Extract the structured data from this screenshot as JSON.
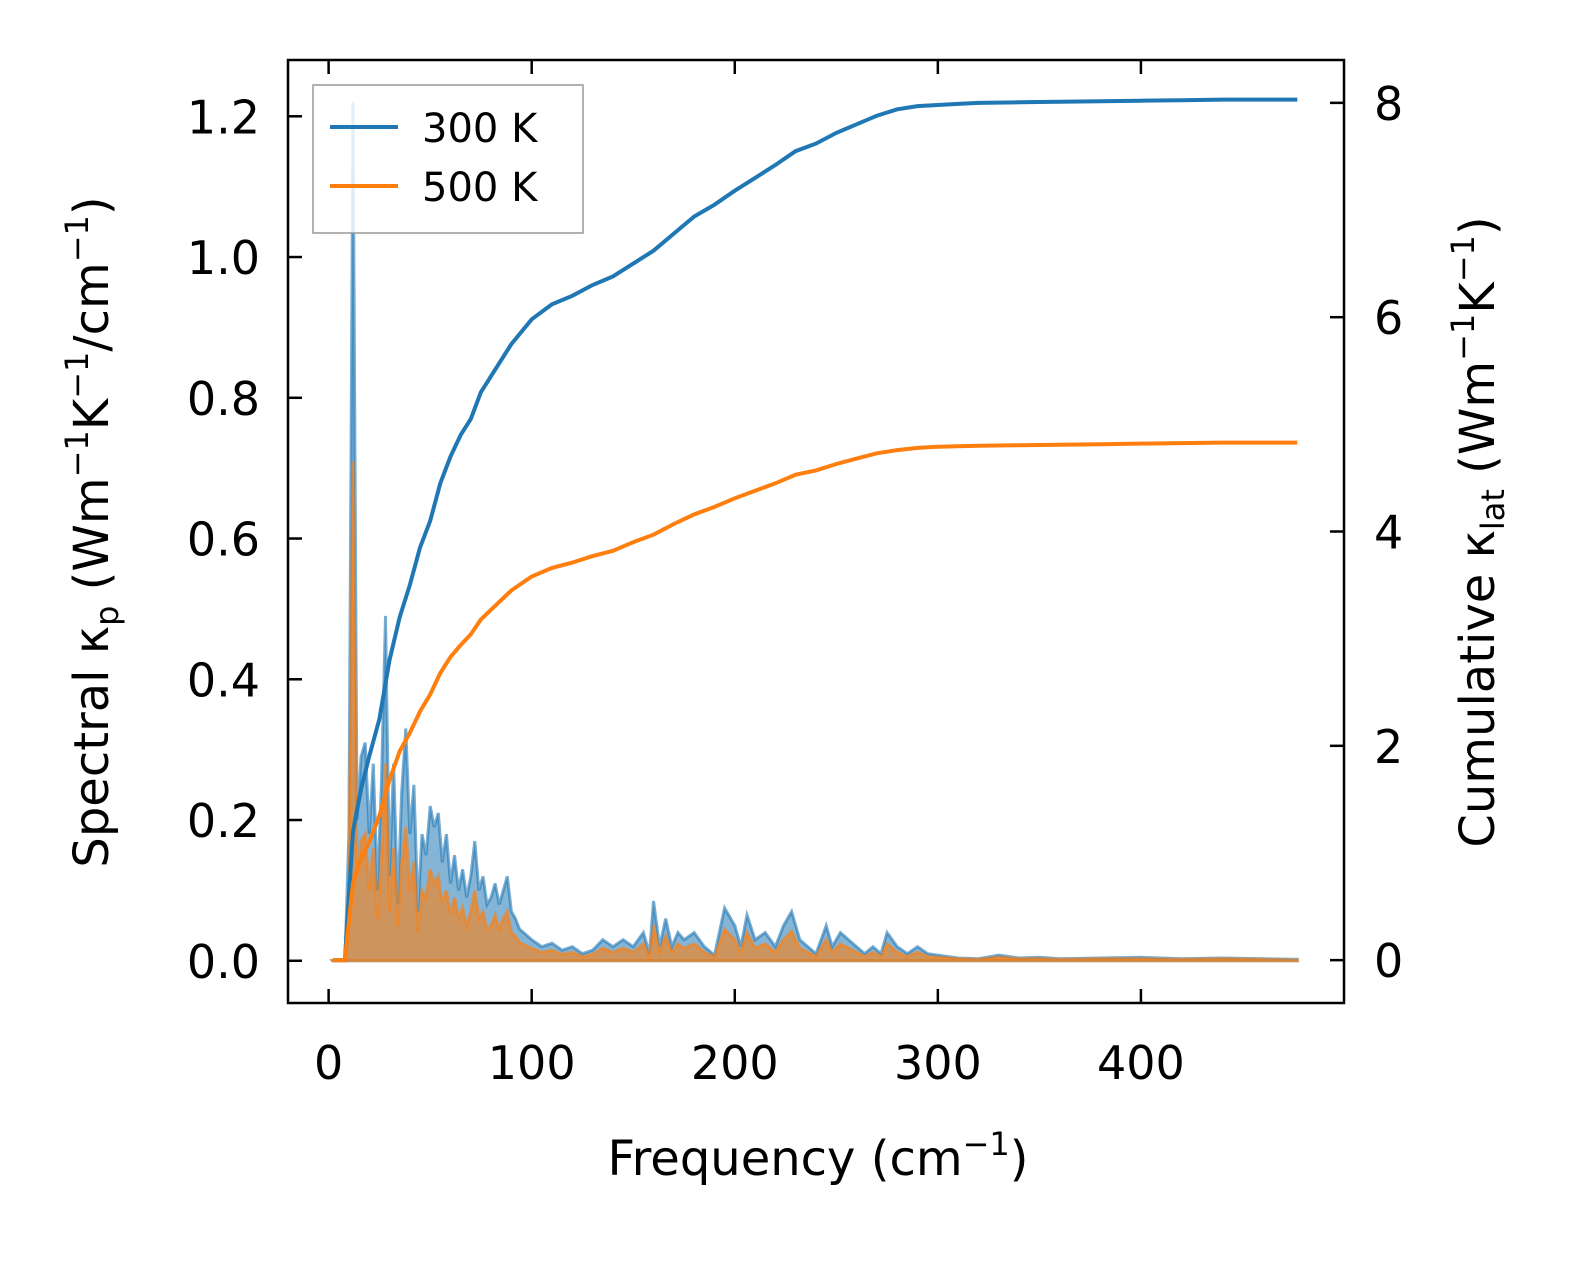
{
  "chart_data": {
    "type": "line",
    "title": "",
    "xlabel": {
      "main": "Frequency (cm",
      "sup": "−1",
      "tail": ")"
    },
    "ylabel_left": {
      "p1": "Spectral κ",
      "sub": "p",
      "p2": " (Wm",
      "sup1": "−1",
      "p3": "K",
      "sup2": "−1",
      "p4": "/cm",
      "sup3": "−1",
      "p5": ")"
    },
    "ylabel_right": {
      "p1": "Cumulative κ",
      "sub": "lat",
      "p2": " (Wm",
      "sup1": "−1",
      "p3": "K",
      "sup2": "−1",
      "p4": ")"
    },
    "xlim": [
      -20,
      500
    ],
    "ylim_left": [
      -0.06,
      1.28
    ],
    "ylim_right": [
      -0.4,
      8.4
    ],
    "x_ticks": [
      0,
      100,
      200,
      300,
      400
    ],
    "x_tick_labels": [
      "0",
      "100",
      "200",
      "300",
      "400"
    ],
    "y_left_ticks": [
      0.0,
      0.2,
      0.4,
      0.6,
      0.8,
      1.0,
      1.2
    ],
    "y_left_tick_labels": [
      "0.0",
      "0.2",
      "0.4",
      "0.6",
      "0.8",
      "1.0",
      "1.2"
    ],
    "y_right_ticks": [
      0,
      2,
      4,
      6,
      8
    ],
    "y_right_tick_labels": [
      "0",
      "2",
      "4",
      "6",
      "8"
    ],
    "legend_position": "top-left",
    "series": [
      {
        "name": "300 K",
        "color": "#1f77b4",
        "spectral": {
          "x": [
            2,
            8,
            10,
            12,
            14,
            16,
            18,
            20,
            22,
            24,
            26,
            28,
            30,
            32,
            34,
            36,
            38,
            40,
            42,
            44,
            46,
            48,
            50,
            52,
            54,
            56,
            58,
            60,
            62,
            64,
            66,
            68,
            70,
            72,
            74,
            76,
            78,
            80,
            82,
            84,
            86,
            88,
            90,
            92,
            94,
            96,
            98,
            100,
            105,
            110,
            115,
            120,
            125,
            130,
            135,
            140,
            145,
            150,
            155,
            158,
            160,
            163,
            166,
            169,
            172,
            175,
            180,
            185,
            190,
            195,
            200,
            203,
            206,
            210,
            215,
            220,
            224,
            228,
            232,
            236,
            240,
            245,
            248,
            252,
            256,
            260,
            264,
            268,
            272,
            275,
            280,
            285,
            290,
            295,
            300,
            310,
            320,
            330,
            340,
            350,
            360,
            380,
            400,
            420,
            440,
            460,
            477
          ],
          "y": [
            0,
            0,
            0.18,
            1.22,
            0.2,
            0.29,
            0.31,
            0.18,
            0.28,
            0.1,
            0.25,
            0.49,
            0.12,
            0.28,
            0.08,
            0.24,
            0.33,
            0.18,
            0.25,
            0.07,
            0.18,
            0.15,
            0.22,
            0.19,
            0.21,
            0.14,
            0.18,
            0.11,
            0.15,
            0.1,
            0.13,
            0.09,
            0.12,
            0.17,
            0.1,
            0.12,
            0.08,
            0.09,
            0.11,
            0.08,
            0.1,
            0.12,
            0.07,
            0.06,
            0.045,
            0.04,
            0.035,
            0.03,
            0.02,
            0.025,
            0.015,
            0.02,
            0.01,
            0.015,
            0.03,
            0.02,
            0.03,
            0.02,
            0.04,
            0.01,
            0.085,
            0.02,
            0.06,
            0.02,
            0.04,
            0.03,
            0.04,
            0.02,
            0.008,
            0.075,
            0.05,
            0.02,
            0.065,
            0.03,
            0.04,
            0.02,
            0.05,
            0.07,
            0.03,
            0.02,
            0.01,
            0.05,
            0.02,
            0.04,
            0.03,
            0.02,
            0.01,
            0.02,
            0.01,
            0.04,
            0.02,
            0.01,
            0.02,
            0.01,
            0.008,
            0.004,
            0.003,
            0.008,
            0.004,
            0.005,
            0.003,
            0.004,
            0.005,
            0.003,
            0.004,
            0.003,
            0.002
          ]
        },
        "cumulative": {
          "x": [
            2,
            8,
            12,
            16,
            20,
            25,
            30,
            35,
            40,
            45,
            50,
            55,
            60,
            65,
            70,
            75,
            80,
            90,
            100,
            110,
            120,
            130,
            140,
            150,
            160,
            170,
            180,
            190,
            200,
            210,
            220,
            230,
            240,
            250,
            260,
            270,
            280,
            290,
            300,
            310,
            320,
            340,
            360,
            380,
            400,
            420,
            440,
            460,
            477
          ],
          "y": [
            0,
            0,
            1.2,
            1.6,
            1.9,
            2.25,
            2.8,
            3.2,
            3.5,
            3.85,
            4.1,
            4.45,
            4.7,
            4.9,
            5.05,
            5.3,
            5.45,
            5.75,
            5.98,
            6.12,
            6.2,
            6.3,
            6.38,
            6.5,
            6.62,
            6.78,
            6.94,
            7.05,
            7.18,
            7.3,
            7.42,
            7.55,
            7.62,
            7.72,
            7.8,
            7.88,
            7.94,
            7.97,
            7.98,
            7.99,
            8.0,
            8.005,
            8.01,
            8.015,
            8.02,
            8.025,
            8.03,
            8.03,
            8.03
          ]
        }
      },
      {
        "name": "500 K",
        "color": "#ff7f0e",
        "spectral": {
          "x": [
            2,
            8,
            10,
            12,
            14,
            16,
            18,
            20,
            22,
            24,
            26,
            28,
            30,
            32,
            34,
            36,
            38,
            40,
            42,
            44,
            46,
            48,
            50,
            52,
            54,
            56,
            58,
            60,
            62,
            64,
            66,
            68,
            70,
            72,
            74,
            76,
            78,
            80,
            82,
            84,
            86,
            88,
            90,
            92,
            94,
            96,
            98,
            100,
            105,
            110,
            115,
            120,
            125,
            130,
            135,
            140,
            145,
            150,
            155,
            158,
            160,
            163,
            166,
            169,
            172,
            175,
            180,
            185,
            190,
            195,
            200,
            203,
            206,
            210,
            215,
            220,
            224,
            228,
            232,
            236,
            240,
            245,
            248,
            252,
            256,
            260,
            264,
            268,
            272,
            275,
            280,
            285,
            290,
            295,
            300,
            310,
            320,
            330,
            340,
            350,
            360,
            380,
            400,
            420,
            440,
            460,
            477
          ],
          "y": [
            0,
            0,
            0.11,
            0.71,
            0.12,
            0.17,
            0.18,
            0.1,
            0.16,
            0.06,
            0.14,
            0.28,
            0.07,
            0.16,
            0.05,
            0.14,
            0.19,
            0.1,
            0.14,
            0.04,
            0.1,
            0.09,
            0.13,
            0.11,
            0.12,
            0.08,
            0.1,
            0.065,
            0.09,
            0.06,
            0.075,
            0.05,
            0.07,
            0.1,
            0.06,
            0.07,
            0.045,
            0.05,
            0.065,
            0.045,
            0.06,
            0.07,
            0.04,
            0.035,
            0.026,
            0.023,
            0.02,
            0.018,
            0.012,
            0.015,
            0.009,
            0.012,
            0.006,
            0.009,
            0.018,
            0.012,
            0.018,
            0.012,
            0.024,
            0.006,
            0.05,
            0.012,
            0.035,
            0.012,
            0.024,
            0.018,
            0.024,
            0.012,
            0.005,
            0.045,
            0.03,
            0.012,
            0.04,
            0.018,
            0.024,
            0.012,
            0.03,
            0.042,
            0.018,
            0.012,
            0.006,
            0.03,
            0.012,
            0.024,
            0.018,
            0.012,
            0.006,
            0.012,
            0.006,
            0.024,
            0.012,
            0.006,
            0.012,
            0.006,
            0.005,
            0.003,
            0.002,
            0.005,
            0.003,
            0.003,
            0.002,
            0.003,
            0.003,
            0.002,
            0.003,
            0.002,
            0.001
          ]
        },
        "cumulative": {
          "x": [
            2,
            8,
            12,
            16,
            20,
            25,
            30,
            35,
            40,
            45,
            50,
            55,
            60,
            65,
            70,
            75,
            80,
            90,
            100,
            110,
            120,
            130,
            140,
            150,
            160,
            170,
            180,
            190,
            200,
            210,
            220,
            230,
            240,
            250,
            260,
            270,
            280,
            290,
            300,
            310,
            320,
            340,
            360,
            380,
            400,
            420,
            440,
            460,
            477
          ],
          "y": [
            0,
            0,
            0.72,
            0.95,
            1.1,
            1.35,
            1.68,
            1.95,
            2.12,
            2.32,
            2.48,
            2.68,
            2.83,
            2.94,
            3.04,
            3.18,
            3.27,
            3.45,
            3.58,
            3.66,
            3.71,
            3.77,
            3.82,
            3.9,
            3.97,
            4.07,
            4.16,
            4.23,
            4.31,
            4.38,
            4.45,
            4.53,
            4.57,
            4.63,
            4.68,
            4.73,
            4.76,
            4.78,
            4.79,
            4.795,
            4.8,
            4.805,
            4.81,
            4.815,
            4.82,
            4.825,
            4.83,
            4.83,
            4.83
          ]
        }
      }
    ]
  }
}
